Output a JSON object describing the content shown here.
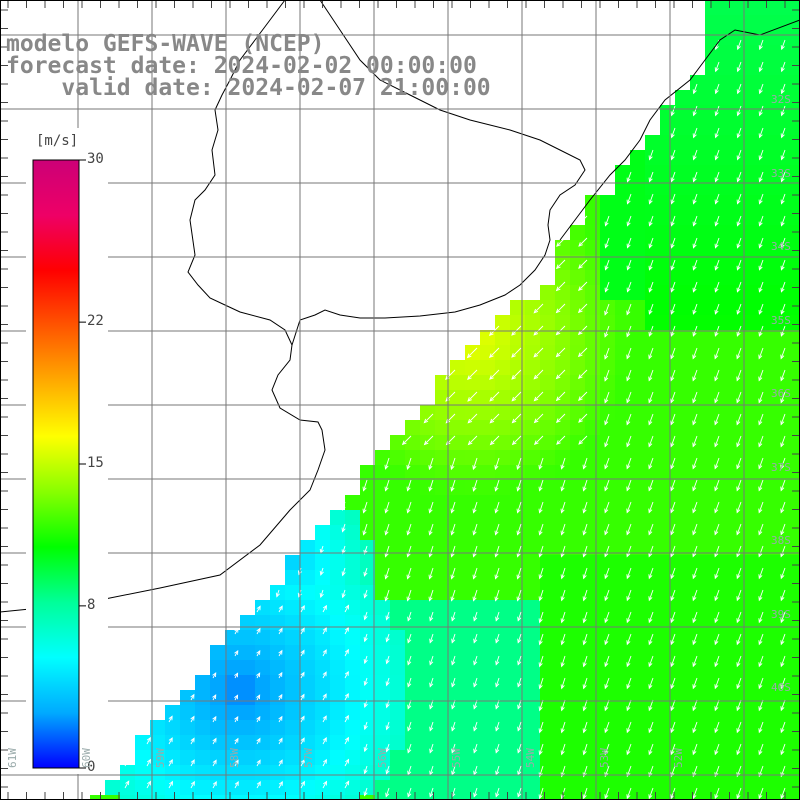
{
  "header": {
    "line1": "modelo GEFS-WAVE (NCEP)",
    "line2": "forecast date: 2024-02-02 00:00:00",
    "line3": "    valid date: 2024-02-07 21:00:00"
  },
  "colorbar": {
    "unit": "[m/s]",
    "ticks": [
      "30",
      "22",
      "15",
      "8",
      "0"
    ],
    "min": 0,
    "max": 30,
    "colors": [
      "#0000ff",
      "#00aaff",
      "#00ffff",
      "#00ff99",
      "#00ff00",
      "#88ff00",
      "#ffff00",
      "#ffaa00",
      "#ff5500",
      "#ff0000",
      "#ee0066",
      "#cc0077"
    ]
  },
  "map": {
    "lat_labels": [
      "32S",
      "33S",
      "34S",
      "35S",
      "36S",
      "37S",
      "38S",
      "39S",
      "40S"
    ],
    "lon_labels": [
      "61W",
      "60W",
      "59W",
      "58W",
      "57W",
      "56W",
      "55W",
      "54W",
      "53W",
      "52W"
    ],
    "land_color": "#ffffff",
    "coast_color": "#000000",
    "grid_color": "#777777",
    "arrow_color": "#ffffff"
  }
}
